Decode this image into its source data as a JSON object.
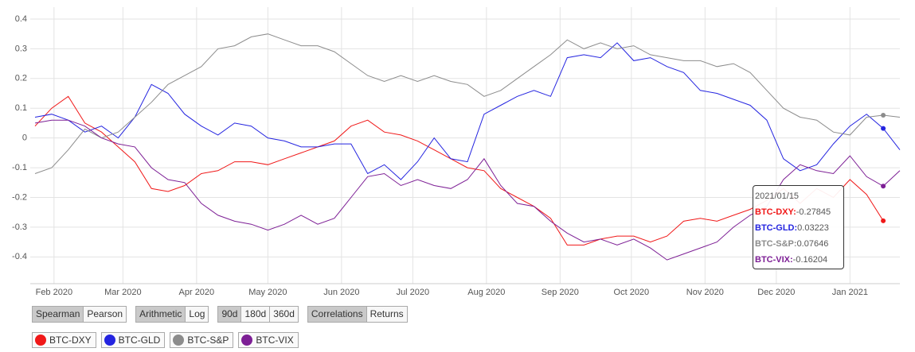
{
  "chart_data": {
    "type": "line",
    "x": [
      "2020/01/24",
      "2020/01/31",
      "2020/02/07",
      "2020/02/14",
      "2020/02/21",
      "2020/02/28",
      "2020/03/06",
      "2020/03/13",
      "2020/03/20",
      "2020/03/27",
      "2020/04/03",
      "2020/04/10",
      "2020/04/17",
      "2020/04/24",
      "2020/05/01",
      "2020/05/08",
      "2020/05/15",
      "2020/05/22",
      "2020/05/29",
      "2020/06/05",
      "2020/06/12",
      "2020/06/19",
      "2020/06/26",
      "2020/07/03",
      "2020/07/10",
      "2020/07/17",
      "2020/07/24",
      "2020/07/31",
      "2020/08/07",
      "2020/08/14",
      "2020/08/21",
      "2020/08/28",
      "2020/09/04",
      "2020/09/11",
      "2020/09/18",
      "2020/09/25",
      "2020/10/02",
      "2020/10/09",
      "2020/10/16",
      "2020/10/23",
      "2020/10/30",
      "2020/11/06",
      "2020/11/13",
      "2020/11/20",
      "2020/11/27",
      "2020/12/04",
      "2020/12/11",
      "2020/12/18",
      "2020/12/25",
      "2021/01/01",
      "2021/01/08",
      "2021/01/15",
      "2021/01/22"
    ],
    "series": [
      {
        "name": "BTC-DXY",
        "color": "#f01818",
        "values": [
          0.04,
          0.1,
          0.14,
          0.05,
          0.02,
          -0.03,
          -0.08,
          -0.17,
          -0.18,
          -0.16,
          -0.12,
          -0.11,
          -0.08,
          -0.08,
          -0.09,
          -0.07,
          -0.05,
          -0.03,
          -0.01,
          0.04,
          0.06,
          0.02,
          0.01,
          -0.01,
          -0.04,
          -0.07,
          -0.1,
          -0.11,
          -0.17,
          -0.2,
          -0.23,
          -0.27,
          -0.36,
          -0.36,
          -0.34,
          -0.33,
          -0.33,
          -0.35,
          -0.33,
          -0.28,
          -0.27,
          -0.28,
          -0.26,
          -0.24,
          -0.21,
          -0.17,
          -0.22,
          -0.17,
          -0.2,
          -0.14,
          -0.19,
          -0.27845,
          null
        ]
      },
      {
        "name": "BTC-GLD",
        "color": "#2424e0",
        "values": [
          0.07,
          0.08,
          0.06,
          0.02,
          0.04,
          0.0,
          0.07,
          0.18,
          0.15,
          0.08,
          0.04,
          0.01,
          0.05,
          0.04,
          0.0,
          -0.01,
          -0.03,
          -0.03,
          -0.02,
          -0.02,
          -0.12,
          -0.09,
          -0.14,
          -0.08,
          0.0,
          -0.07,
          -0.08,
          0.08,
          0.11,
          0.14,
          0.16,
          0.14,
          0.27,
          0.28,
          0.27,
          0.32,
          0.26,
          0.27,
          0.24,
          0.22,
          0.16,
          0.15,
          0.13,
          0.11,
          0.06,
          -0.07,
          -0.11,
          -0.09,
          -0.02,
          0.04,
          0.08,
          0.03223,
          -0.04
        ]
      },
      {
        "name": "BTC-S&P",
        "color": "#8c8c8c",
        "values": [
          -0.12,
          -0.1,
          -0.04,
          0.03,
          0.0,
          0.02,
          0.07,
          0.12,
          0.18,
          0.21,
          0.24,
          0.3,
          0.31,
          0.34,
          0.35,
          0.33,
          0.31,
          0.31,
          0.29,
          0.25,
          0.21,
          0.19,
          0.21,
          0.19,
          0.21,
          0.19,
          0.18,
          0.14,
          0.16,
          0.2,
          0.24,
          0.28,
          0.33,
          0.3,
          0.32,
          0.3,
          0.31,
          0.28,
          0.27,
          0.26,
          0.26,
          0.24,
          0.25,
          0.22,
          0.16,
          0.1,
          0.07,
          0.06,
          0.02,
          0.01,
          0.07,
          0.07646,
          0.07
        ]
      },
      {
        "name": "BTC-VIX",
        "color": "#7d1f95",
        "values": [
          0.05,
          0.06,
          0.06,
          0.04,
          0.0,
          -0.02,
          -0.03,
          -0.1,
          -0.14,
          -0.15,
          -0.22,
          -0.26,
          -0.28,
          -0.29,
          -0.31,
          -0.29,
          -0.26,
          -0.29,
          -0.27,
          -0.2,
          -0.13,
          -0.12,
          -0.16,
          -0.14,
          -0.16,
          -0.17,
          -0.14,
          -0.07,
          -0.16,
          -0.22,
          -0.23,
          -0.28,
          -0.32,
          -0.35,
          -0.34,
          -0.36,
          -0.34,
          -0.37,
          -0.41,
          -0.39,
          -0.37,
          -0.35,
          -0.3,
          -0.26,
          -0.23,
          -0.14,
          -0.09,
          -0.11,
          -0.12,
          -0.06,
          -0.13,
          -0.16204,
          -0.11
        ]
      }
    ],
    "xlim": [
      "2020/01/22",
      "2021/01/22"
    ],
    "xticks": [
      {
        "value": "2020/02/01",
        "label": "Feb 2020"
      },
      {
        "value": "2020/03/01",
        "label": "Mar 2020"
      },
      {
        "value": "2020/04/01",
        "label": "Apr 2020"
      },
      {
        "value": "2020/05/01",
        "label": "May 2020"
      },
      {
        "value": "2020/06/01",
        "label": "Jun 2020"
      },
      {
        "value": "2020/07/01",
        "label": "Jul 2020"
      },
      {
        "value": "2020/08/01",
        "label": "Aug 2020"
      },
      {
        "value": "2020/09/01",
        "label": "Sep 2020"
      },
      {
        "value": "2020/10/01",
        "label": "Oct 2020"
      },
      {
        "value": "2020/11/01",
        "label": "Nov 2020"
      },
      {
        "value": "2020/12/01",
        "label": "Dec 2020"
      },
      {
        "value": "2021/01/01",
        "label": "Jan 2021"
      }
    ],
    "ylim": [
      -0.49,
      0.44
    ],
    "yticks": [
      0.4,
      0.3,
      0.2,
      0.1,
      0,
      -0.1,
      -0.2,
      -0.3,
      -0.4
    ],
    "grid": true
  },
  "tooltip": {
    "date": "2021/01/15",
    "rows": [
      {
        "label": "BTC-DXY:",
        "value": -0.27845
      },
      {
        "label": "BTC-GLD:",
        "value": 0.03223
      },
      {
        "label": "BTC-S&P:",
        "value": 0.07646
      },
      {
        "label": "BTC-VIX:",
        "value": -0.16204
      }
    ]
  },
  "controls": {
    "method": [
      "Spearman",
      "Pearson"
    ],
    "scale": [
      "Arithmetic",
      "Log"
    ],
    "window": [
      "90d",
      "180d",
      "360d"
    ],
    "view": [
      "Correlations",
      "Returns"
    ]
  }
}
